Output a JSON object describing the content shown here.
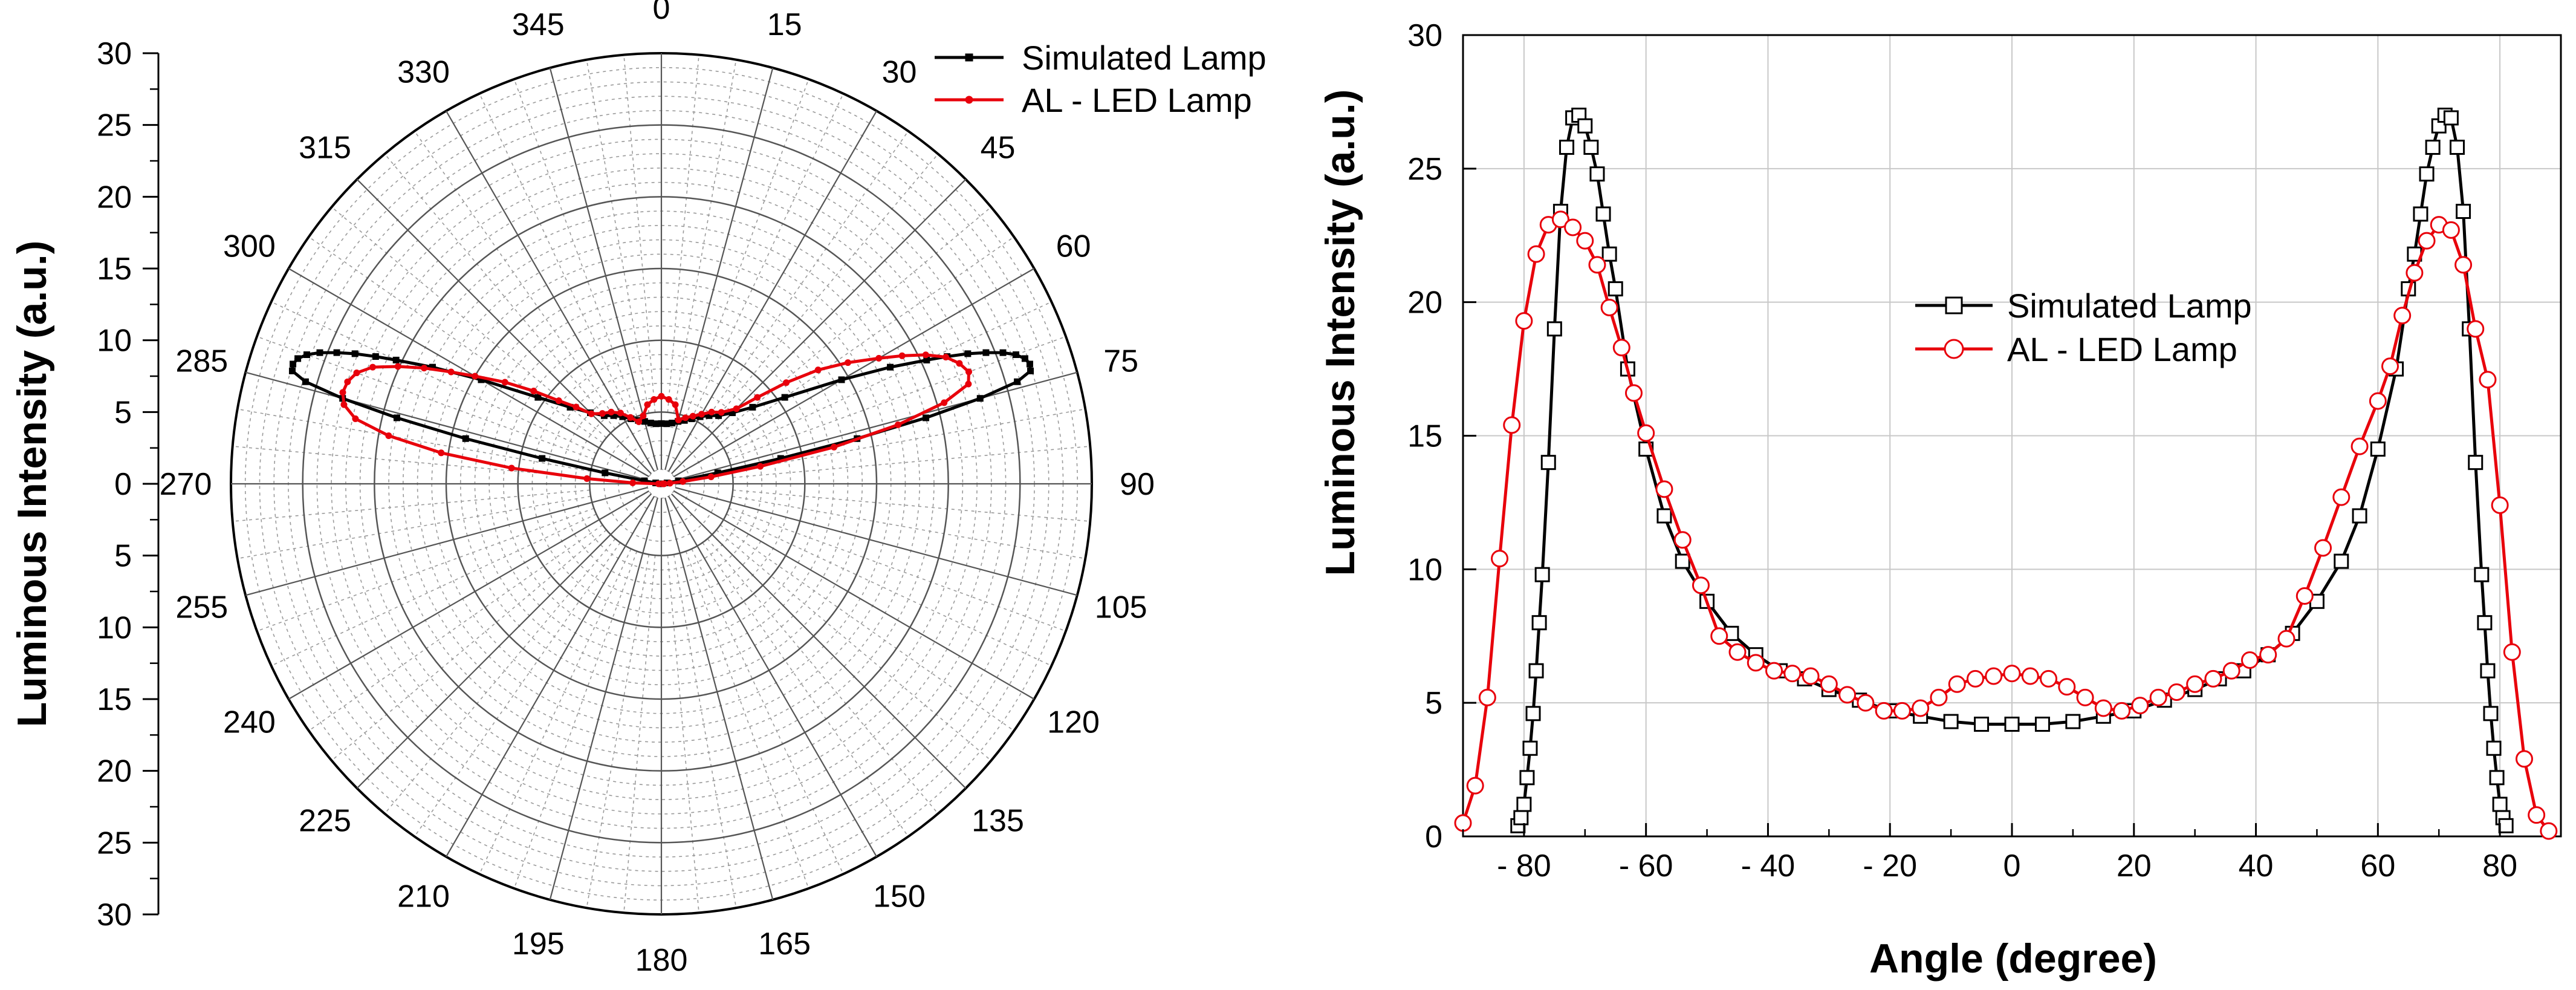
{
  "chart_data": [
    {
      "type": "polar",
      "ylabel": "Luminous Intensity (a.u.)",
      "r_range": [
        0,
        30
      ],
      "r_ticks": [
        0,
        5,
        10,
        15,
        20,
        25,
        30
      ],
      "r_tick_labels": [
        "30",
        "25",
        "20",
        "15",
        "10",
        "5",
        "0",
        "5",
        "10",
        "15",
        "20",
        "25",
        "30"
      ],
      "angle_ticks": [
        "0",
        "15",
        "30",
        "45",
        "60",
        "75",
        "90",
        "105",
        "120",
        "135",
        "150",
        "165",
        "180",
        "195",
        "210",
        "225",
        "240",
        "255",
        "270",
        "285",
        "300",
        "315",
        "330",
        "345"
      ],
      "angle_direction": "clockwise from top",
      "grid": true,
      "legend": "top-right",
      "series": [
        {
          "name": "Simulated Lamp",
          "color": "#000000",
          "marker": "square",
          "angles": [
            -90,
            -85,
            -81,
            -80,
            -79,
            -78,
            -77,
            -76,
            -75,
            -74,
            -73,
            -72,
            -71,
            -70,
            -69,
            -68,
            -67,
            -66,
            -65,
            -63,
            -60,
            -55,
            -50,
            -45,
            -40,
            -35,
            -30,
            -25,
            -20,
            -15,
            -10,
            -5,
            0,
            5,
            10,
            15,
            20,
            25,
            30,
            35,
            40,
            45,
            50,
            55,
            60,
            63,
            65,
            66,
            67,
            68,
            69,
            70,
            71,
            72,
            73,
            74,
            75,
            76,
            77,
            78,
            79,
            80,
            81,
            85,
            90
          ],
          "values": [
            0,
            0,
            0.4,
            1.2,
            4,
            8.5,
            14,
            19,
            23,
            25.8,
            26.9,
            27,
            26.8,
            26.3,
            25.5,
            24.4,
            23.2,
            21.8,
            20.4,
            17.9,
            14.5,
            10.5,
            8.3,
            7.0,
            6.2,
            5.8,
            5.4,
            5.0,
            4.7,
            4.5,
            4.3,
            4.2,
            4.2,
            4.2,
            4.3,
            4.5,
            4.7,
            5.0,
            5.4,
            5.8,
            6.2,
            7.0,
            8.3,
            10.5,
            14.5,
            17.9,
            20.4,
            21.8,
            23.2,
            24.4,
            25.5,
            26.3,
            26.8,
            27,
            26.9,
            25.8,
            23,
            19,
            14,
            8.5,
            4,
            1.2,
            0.4,
            0,
            0
          ]
        },
        {
          "name": "AL - LED Lamp",
          "color": "#e8000b",
          "marker": "circle",
          "angles": [
            -90,
            -88,
            -86,
            -84,
            -82,
            -80,
            -78,
            -76,
            -74,
            -72,
            -70,
            -68,
            -66,
            -64,
            -62,
            -60,
            -57,
            -54,
            -51,
            -48,
            -45,
            -40,
            -35,
            -30,
            -25,
            -20,
            -15,
            -10,
            -5,
            0,
            5,
            10,
            15,
            20,
            25,
            30,
            35,
            40,
            45,
            48,
            51,
            54,
            57,
            60,
            62,
            64,
            66,
            68,
            70,
            72,
            74,
            76,
            78,
            80,
            82,
            84,
            86,
            88,
            90
          ],
          "values": [
            0.2,
            2,
            5.2,
            10.5,
            15.5,
            19.3,
            21.8,
            22.8,
            23.1,
            23,
            22.6,
            21.7,
            20.1,
            18.4,
            16.6,
            15,
            13,
            11,
            9.2,
            8,
            6.9,
            6.4,
            6.1,
            5.7,
            5.1,
            4.6,
            4.9,
            5.6,
            5.9,
            6.1,
            5.9,
            5.6,
            4.6,
            4.9,
            5.2,
            5.6,
            6.1,
            6.5,
            7.4,
            9,
            11.2,
            13.5,
            15.5,
            17.5,
            19,
            20.5,
            21.7,
            22.4,
            22.8,
            22.5,
            20.5,
            17,
            12.3,
            7,
            3.5,
            1.5,
            0.6,
            0.2,
            0.1
          ]
        }
      ]
    },
    {
      "type": "line",
      "xlabel": "Angle (degree)",
      "ylabel": "Luminous Intensity (a.u.)",
      "xlim": [
        -90,
        90
      ],
      "ylim": [
        0,
        30
      ],
      "x_ticks": [
        -80,
        -60,
        -40,
        -20,
        0,
        20,
        40,
        60,
        80
      ],
      "x_tick_labels": [
        "- 80",
        "- 60",
        "- 40",
        "- 20",
        "0",
        "20",
        "40",
        "60",
        "80"
      ],
      "y_ticks": [
        0,
        5,
        10,
        15,
        20,
        25,
        30
      ],
      "y_tick_labels": [
        "0",
        "5",
        "10",
        "15",
        "20",
        "25",
        "30"
      ],
      "grid": true,
      "legend": "center",
      "series": [
        {
          "name": "Simulated Lamp",
          "color": "#000000",
          "marker": "square",
          "x": [
            -81,
            -80.5,
            -80,
            -79.5,
            -79,
            -78.5,
            -78,
            -77.5,
            -77,
            -76,
            -75,
            -74,
            -73,
            -72,
            -71,
            -70,
            -69,
            -68,
            -67,
            -66,
            -65,
            -63,
            -60,
            -57,
            -54,
            -50,
            -46,
            -42,
            -38,
            -34,
            -30,
            -25,
            -20,
            -15,
            -10,
            -5,
            0,
            5,
            10,
            15,
            20,
            25,
            30,
            34,
            38,
            42,
            46,
            50,
            54,
            57,
            60,
            63,
            65,
            66,
            67,
            68,
            69,
            70,
            71,
            72,
            73,
            74,
            75,
            76,
            77,
            77.5,
            78,
            78.5,
            79,
            79.5,
            80,
            80.5,
            81
          ],
          "y": [
            0.4,
            0.7,
            1.2,
            2.2,
            3.3,
            4.6,
            6.2,
            8,
            9.8,
            14,
            19,
            23.4,
            25.8,
            26.9,
            27,
            26.6,
            25.8,
            24.8,
            23.3,
            21.8,
            20.5,
            17.5,
            14.5,
            12,
            10.3,
            8.8,
            7.6,
            6.8,
            6.2,
            5.9,
            5.5,
            5.1,
            4.7,
            4.5,
            4.3,
            4.2,
            4.2,
            4.2,
            4.3,
            4.5,
            4.7,
            5.1,
            5.5,
            5.9,
            6.2,
            6.8,
            7.6,
            8.8,
            10.3,
            12,
            14.5,
            17.5,
            20.5,
            21.8,
            23.3,
            24.8,
            25.8,
            26.6,
            27,
            26.9,
            25.8,
            23.4,
            19,
            14,
            9.8,
            8,
            6.2,
            4.6,
            3.3,
            2.2,
            1.2,
            0.7,
            0.4
          ]
        },
        {
          "name": "AL - LED Lamp",
          "color": "#e8000b",
          "marker": "circle",
          "x": [
            -90,
            -88,
            -86,
            -84,
            -82,
            -80,
            -78,
            -76,
            -74,
            -72,
            -70,
            -68,
            -66,
            -64,
            -62,
            -60,
            -57,
            -54,
            -51,
            -48,
            -45,
            -42,
            -39,
            -36,
            -33,
            -30,
            -27,
            -24,
            -21,
            -18,
            -15,
            -12,
            -9,
            -6,
            -3,
            0,
            3,
            6,
            9,
            12,
            15,
            18,
            21,
            24,
            27,
            30,
            33,
            36,
            39,
            42,
            45,
            48,
            51,
            54,
            57,
            60,
            62,
            64,
            66,
            68,
            70,
            72,
            74,
            76,
            78,
            80,
            82,
            84,
            86,
            88
          ],
          "y": [
            0.5,
            1.9,
            5.2,
            10.4,
            15.4,
            19.3,
            21.8,
            22.9,
            23.1,
            22.8,
            22.3,
            21.4,
            19.8,
            18.3,
            16.6,
            15.1,
            13,
            11.1,
            9.4,
            7.5,
            6.9,
            6.5,
            6.2,
            6.1,
            6,
            5.7,
            5.3,
            5.0,
            4.7,
            4.7,
            4.8,
            5.2,
            5.7,
            5.9,
            6.0,
            6.1,
            6.0,
            5.9,
            5.6,
            5.2,
            4.8,
            4.7,
            4.9,
            5.2,
            5.4,
            5.7,
            5.9,
            6.2,
            6.6,
            6.8,
            7.4,
            9,
            10.8,
            12.7,
            14.6,
            16.3,
            17.6,
            19.5,
            21.1,
            22.3,
            22.9,
            22.7,
            21.4,
            19,
            17.1,
            12.4,
            6.9,
            2.9,
            0.8,
            0.2
          ]
        }
      ]
    }
  ]
}
